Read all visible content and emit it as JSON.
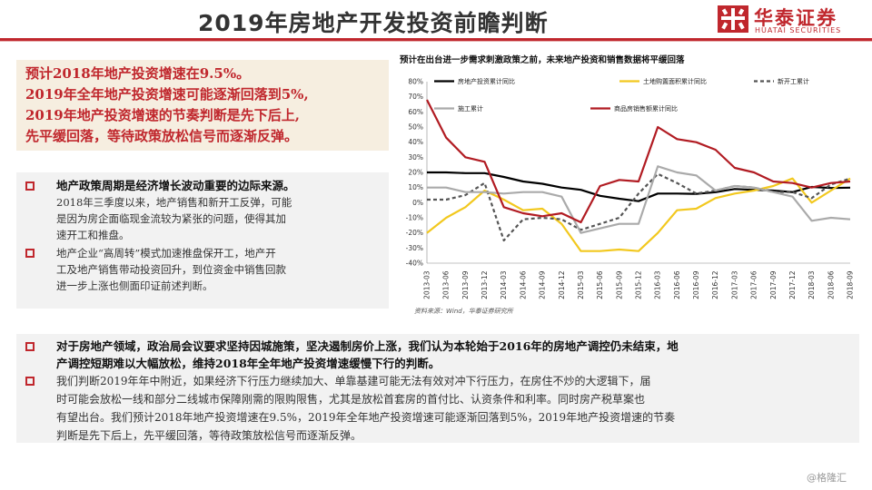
{
  "slide": {
    "title": "2019年房地产开发投资前瞻判断",
    "watermark": "@格隆汇"
  },
  "logo": {
    "cn": "华泰证券",
    "en": "HUATAI SECURITIES",
    "color": "#c0272d"
  },
  "highlight": {
    "lines": [
      "预计2018年地产投资增速在9.5%。",
      "2019年全年地产投资增速可能逐渐回落到5%,",
      "2019年地产投资增速的节奏判断是先下后上,",
      "先平缓回落，等待政策放松信号而逐渐反弹。"
    ]
  },
  "left_points": [
    {
      "head": "地产政策周期是经济增长波动重要的边际来源。",
      "body": [
        "2018年三季度以来，地产销售和新开工反弹，可能",
        "是因为房企面临现金流较为紧张的问题，使得其加",
        "速开工和推盘。"
      ]
    },
    {
      "head": "",
      "body": [
        "地产企业“高周转”模式加速推盘保开工，地产开",
        "工及地产销售带动投资回升，到位资金中销售回款",
        "进一步上涨也侧面印证前述判断。"
      ]
    }
  ],
  "bottom_points": [
    {
      "head": [
        "对于房地产领域，政治局会议要求坚持因城施策，坚决遏制房价上涨，我们认为本轮始于2016年的房地产调控仍未结束，地",
        "产调控短期难以大幅放松，维持2018年全年地产投资增速缓慢下行的判断。"
      ],
      "body": []
    },
    {
      "head": [],
      "body": [
        "我们判断2019年年中附近，如果经济下行压力继续加大、单靠基建可能无法有效对冲下行压力，在房住不炒的大逻辑下，届",
        "时可能会放松一线和部分二线城市保障刚需的限购限售，尤其是放松首套房的首付比、认资条件和利率。同时房产税草案也",
        "有望出台。我们预计2018年地产投资增速在9.5%，2019年全年地产投资增速可能逐渐回落到5%，2019年地产投资增速的节奏",
        "判断是先下后上，先平缓回落，等待政策放松信号而逐渐反弹。"
      ]
    }
  ],
  "chart_meta": {
    "title": "预计在出台进一步需求刺激政策之前，未来地产投资和销售数据将平缓回落",
    "source": "资料来源：Wind，华泰证券研究所"
  },
  "chart_data": {
    "type": "line",
    "x": [
      "2013-03",
      "2013-06",
      "2013-09",
      "2013-12",
      "2014-03",
      "2014-06",
      "2014-09",
      "2014-12",
      "2015-03",
      "2015-06",
      "2015-09",
      "2015-12",
      "2016-03",
      "2016-06",
      "2016-09",
      "2016-12",
      "2017-03",
      "2017-06",
      "2017-09",
      "2017-12",
      "2018-03",
      "2018-06",
      "2018-09"
    ],
    "yticks": [
      "80%",
      "70%",
      "60%",
      "50%",
      "40%",
      "30%",
      "20%",
      "10%",
      "0%",
      "-10%",
      "-20%",
      "-30%",
      "-40%"
    ],
    "ylim": [
      -40,
      80
    ],
    "legend_placement": "top",
    "series": [
      {
        "name": "房地产投资累计同比",
        "color": "#000000",
        "dash": "",
        "values": [
          20,
          20,
          19.5,
          19.5,
          17,
          14,
          12.5,
          10,
          8.5,
          4.5,
          2.6,
          1,
          6,
          6,
          5.8,
          6.9,
          9,
          8.5,
          8,
          7,
          10.4,
          9.7,
          9.9
        ]
      },
      {
        "name": "土地购置面积累计同比",
        "color": "#f2c81e",
        "dash": "",
        "values": [
          -20,
          -10,
          -3,
          8,
          2,
          -5,
          -4,
          -14,
          -32,
          -32,
          -31,
          -32,
          -20,
          -5,
          -4,
          3,
          6,
          8,
          11,
          16,
          0,
          8,
          16
        ]
      },
      {
        "name": "新开工累计",
        "color": "#555555",
        "dash": "4,3",
        "values": [
          2,
          2,
          5,
          13,
          -25,
          -11,
          -10,
          -11,
          -18,
          -14,
          -10,
          6,
          19,
          13,
          6,
          8,
          11,
          10,
          7,
          7,
          3,
          12,
          16
        ]
      },
      {
        "name": "施工累计",
        "color": "#aaaaaa",
        "dash": "",
        "values": [
          10,
          10,
          7,
          7,
          6,
          7,
          7,
          4,
          -20,
          -17,
          -14,
          -14,
          24,
          20,
          18,
          8,
          11,
          10,
          7,
          4,
          -12,
          -10,
          -11
        ]
      },
      {
        "name": "商品房销售额累计同比",
        "color": "#b11b22",
        "dash": "",
        "values": [
          68,
          43,
          30,
          27,
          -3,
          -7,
          -9,
          -7,
          -13,
          11,
          15,
          14,
          50,
          42,
          40,
          35,
          23,
          20,
          14,
          13,
          10,
          13,
          14
        ]
      }
    ]
  }
}
